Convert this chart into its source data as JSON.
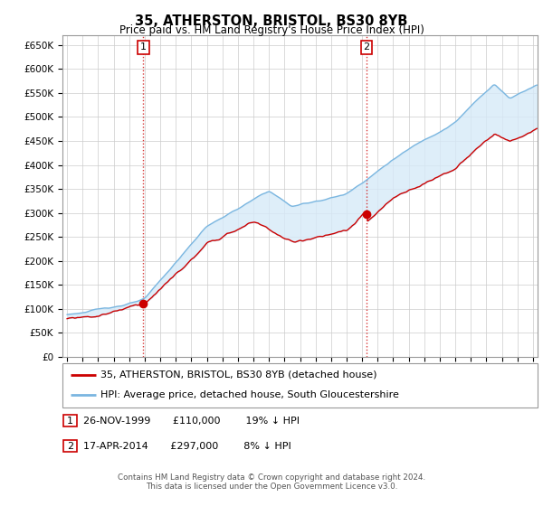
{
  "title": "35, ATHERSTON, BRISTOL, BS30 8YB",
  "subtitle": "Price paid vs. HM Land Registry's House Price Index (HPI)",
  "ylim": [
    0,
    670000
  ],
  "xlim_start": 1994.7,
  "xlim_end": 2025.3,
  "hpi_color": "#7ab6e0",
  "price_color": "#cc0000",
  "fill_color": "#d6eaf8",
  "grid_color": "#cccccc",
  "background_color": "#ffffff",
  "sale1_year": 1999.91,
  "sale1_price": 110000,
  "sale2_year": 2014.29,
  "sale2_price": 297000,
  "annotation1_label": "1",
  "annotation2_label": "2",
  "legend_label1": "35, ATHERSTON, BRISTOL, BS30 8YB (detached house)",
  "legend_label2": "HPI: Average price, detached house, South Gloucestershire",
  "table_row1": [
    "1",
    "26-NOV-1999",
    "£110,000",
    "19% ↓ HPI"
  ],
  "table_row2": [
    "2",
    "17-APR-2014",
    "£297,000",
    "8% ↓ HPI"
  ],
  "footer1": "Contains HM Land Registry data © Crown copyright and database right 2024.",
  "footer2": "This data is licensed under the Open Government Licence v3.0.",
  "vline1_year": 1999.91,
  "vline2_year": 2014.29
}
